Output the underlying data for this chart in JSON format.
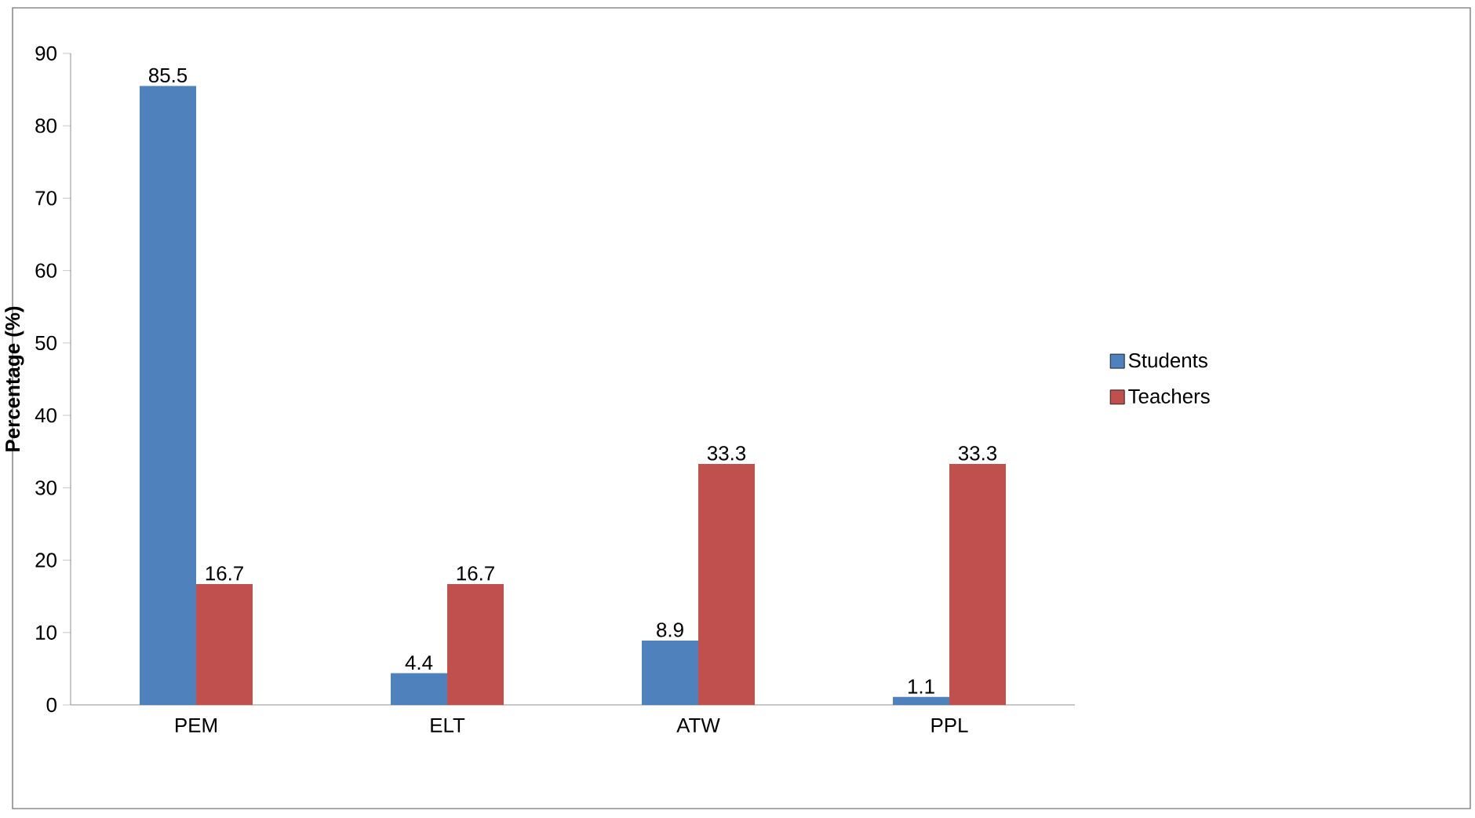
{
  "chart_data": {
    "type": "bar",
    "ylabel": "Percentage (%)",
    "categories": [
      "PEM",
      "ELT",
      "ATW",
      "PPL"
    ],
    "series": [
      {
        "name": "Students",
        "color": "#4f81bd",
        "values": [
          85.5,
          4.4,
          8.9,
          1.1
        ]
      },
      {
        "name": "Teachers",
        "color": "#c0504d",
        "values": [
          16.7,
          16.7,
          33.3,
          33.3
        ]
      }
    ],
    "ylim": [
      0,
      90
    ],
    "yticks": [
      0,
      10,
      20,
      30,
      40,
      50,
      60,
      70,
      80,
      90
    ],
    "data_labels": true,
    "legend": "right",
    "grid": false
  }
}
